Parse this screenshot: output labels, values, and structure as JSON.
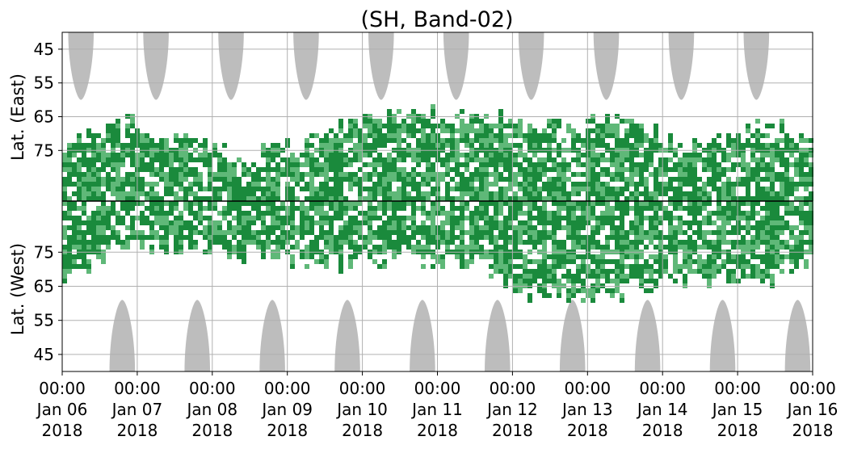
{
  "chart_data": {
    "type": "heatmap",
    "title": "(SH, Band-02)",
    "xlabel": "",
    "ylabel_top": "Lat. (East)",
    "ylabel_bottom": "Lat. (West)",
    "x_tick_labels": [
      [
        "00:00",
        "Jan 06",
        "2018"
      ],
      [
        "00:00",
        "Jan 07",
        "2018"
      ],
      [
        "00:00",
        "Jan 08",
        "2018"
      ],
      [
        "00:00",
        "Jan 09",
        "2018"
      ],
      [
        "00:00",
        "Jan 10",
        "2018"
      ],
      [
        "00:00",
        "Jan 11",
        "2018"
      ],
      [
        "00:00",
        "Jan 12",
        "2018"
      ],
      [
        "00:00",
        "Jan 13",
        "2018"
      ],
      [
        "00:00",
        "Jan 14",
        "2018"
      ],
      [
        "00:00",
        "Jan 15",
        "2018"
      ],
      [
        "00:00",
        "Jan 16",
        "2018"
      ]
    ],
    "x_range_days": [
      0,
      10
    ],
    "y_ticks_east": [
      "45",
      "55",
      "65",
      "75"
    ],
    "y_ticks_west": [
      "75",
      "65",
      "55",
      "45"
    ],
    "lat_range_each_panel": [
      40,
      90
    ],
    "grid": true,
    "colors": {
      "high_density": "#1a8a3c",
      "low_density": "#5fb878",
      "no_data": "#bdbdbd",
      "divider": "#000000"
    },
    "no_data_regions": {
      "east_centers_day": [
        0.25,
        1.25,
        2.25,
        3.25,
        4.25,
        5.25,
        6.25,
        7.25,
        8.25,
        9.25
      ],
      "east_min_lat": 60,
      "west_centers_day": [
        0.8,
        1.8,
        2.8,
        3.8,
        4.8,
        5.8,
        6.8,
        7.8,
        8.8,
        9.8
      ],
      "west_min_lat": 61
    },
    "activity_band": {
      "description_free": true,
      "east_peak_lat_by_day": [
        [
          0,
          75
        ],
        [
          0.8,
          67
        ],
        [
          1.5,
          72
        ],
        [
          2.5,
          78
        ],
        [
          3.6,
          69
        ],
        [
          4.6,
          64
        ],
        [
          5.5,
          66
        ],
        [
          6.5,
          68
        ],
        [
          7.4,
          64
        ],
        [
          8.3,
          76
        ],
        [
          9.3,
          68
        ],
        [
          10,
          72
        ]
      ],
      "west_peak_lat_by_day": [
        [
          0,
          67
        ],
        [
          0.6,
          76
        ],
        [
          1.5,
          78
        ],
        [
          2.5,
          75
        ],
        [
          3.5,
          72
        ],
        [
          4.5,
          74
        ],
        [
          5.5,
          72
        ],
        [
          6.3,
          62
        ],
        [
          7.3,
          63
        ],
        [
          8.2,
          67
        ],
        [
          9.3,
          67
        ],
        [
          10,
          74
        ]
      ]
    }
  }
}
